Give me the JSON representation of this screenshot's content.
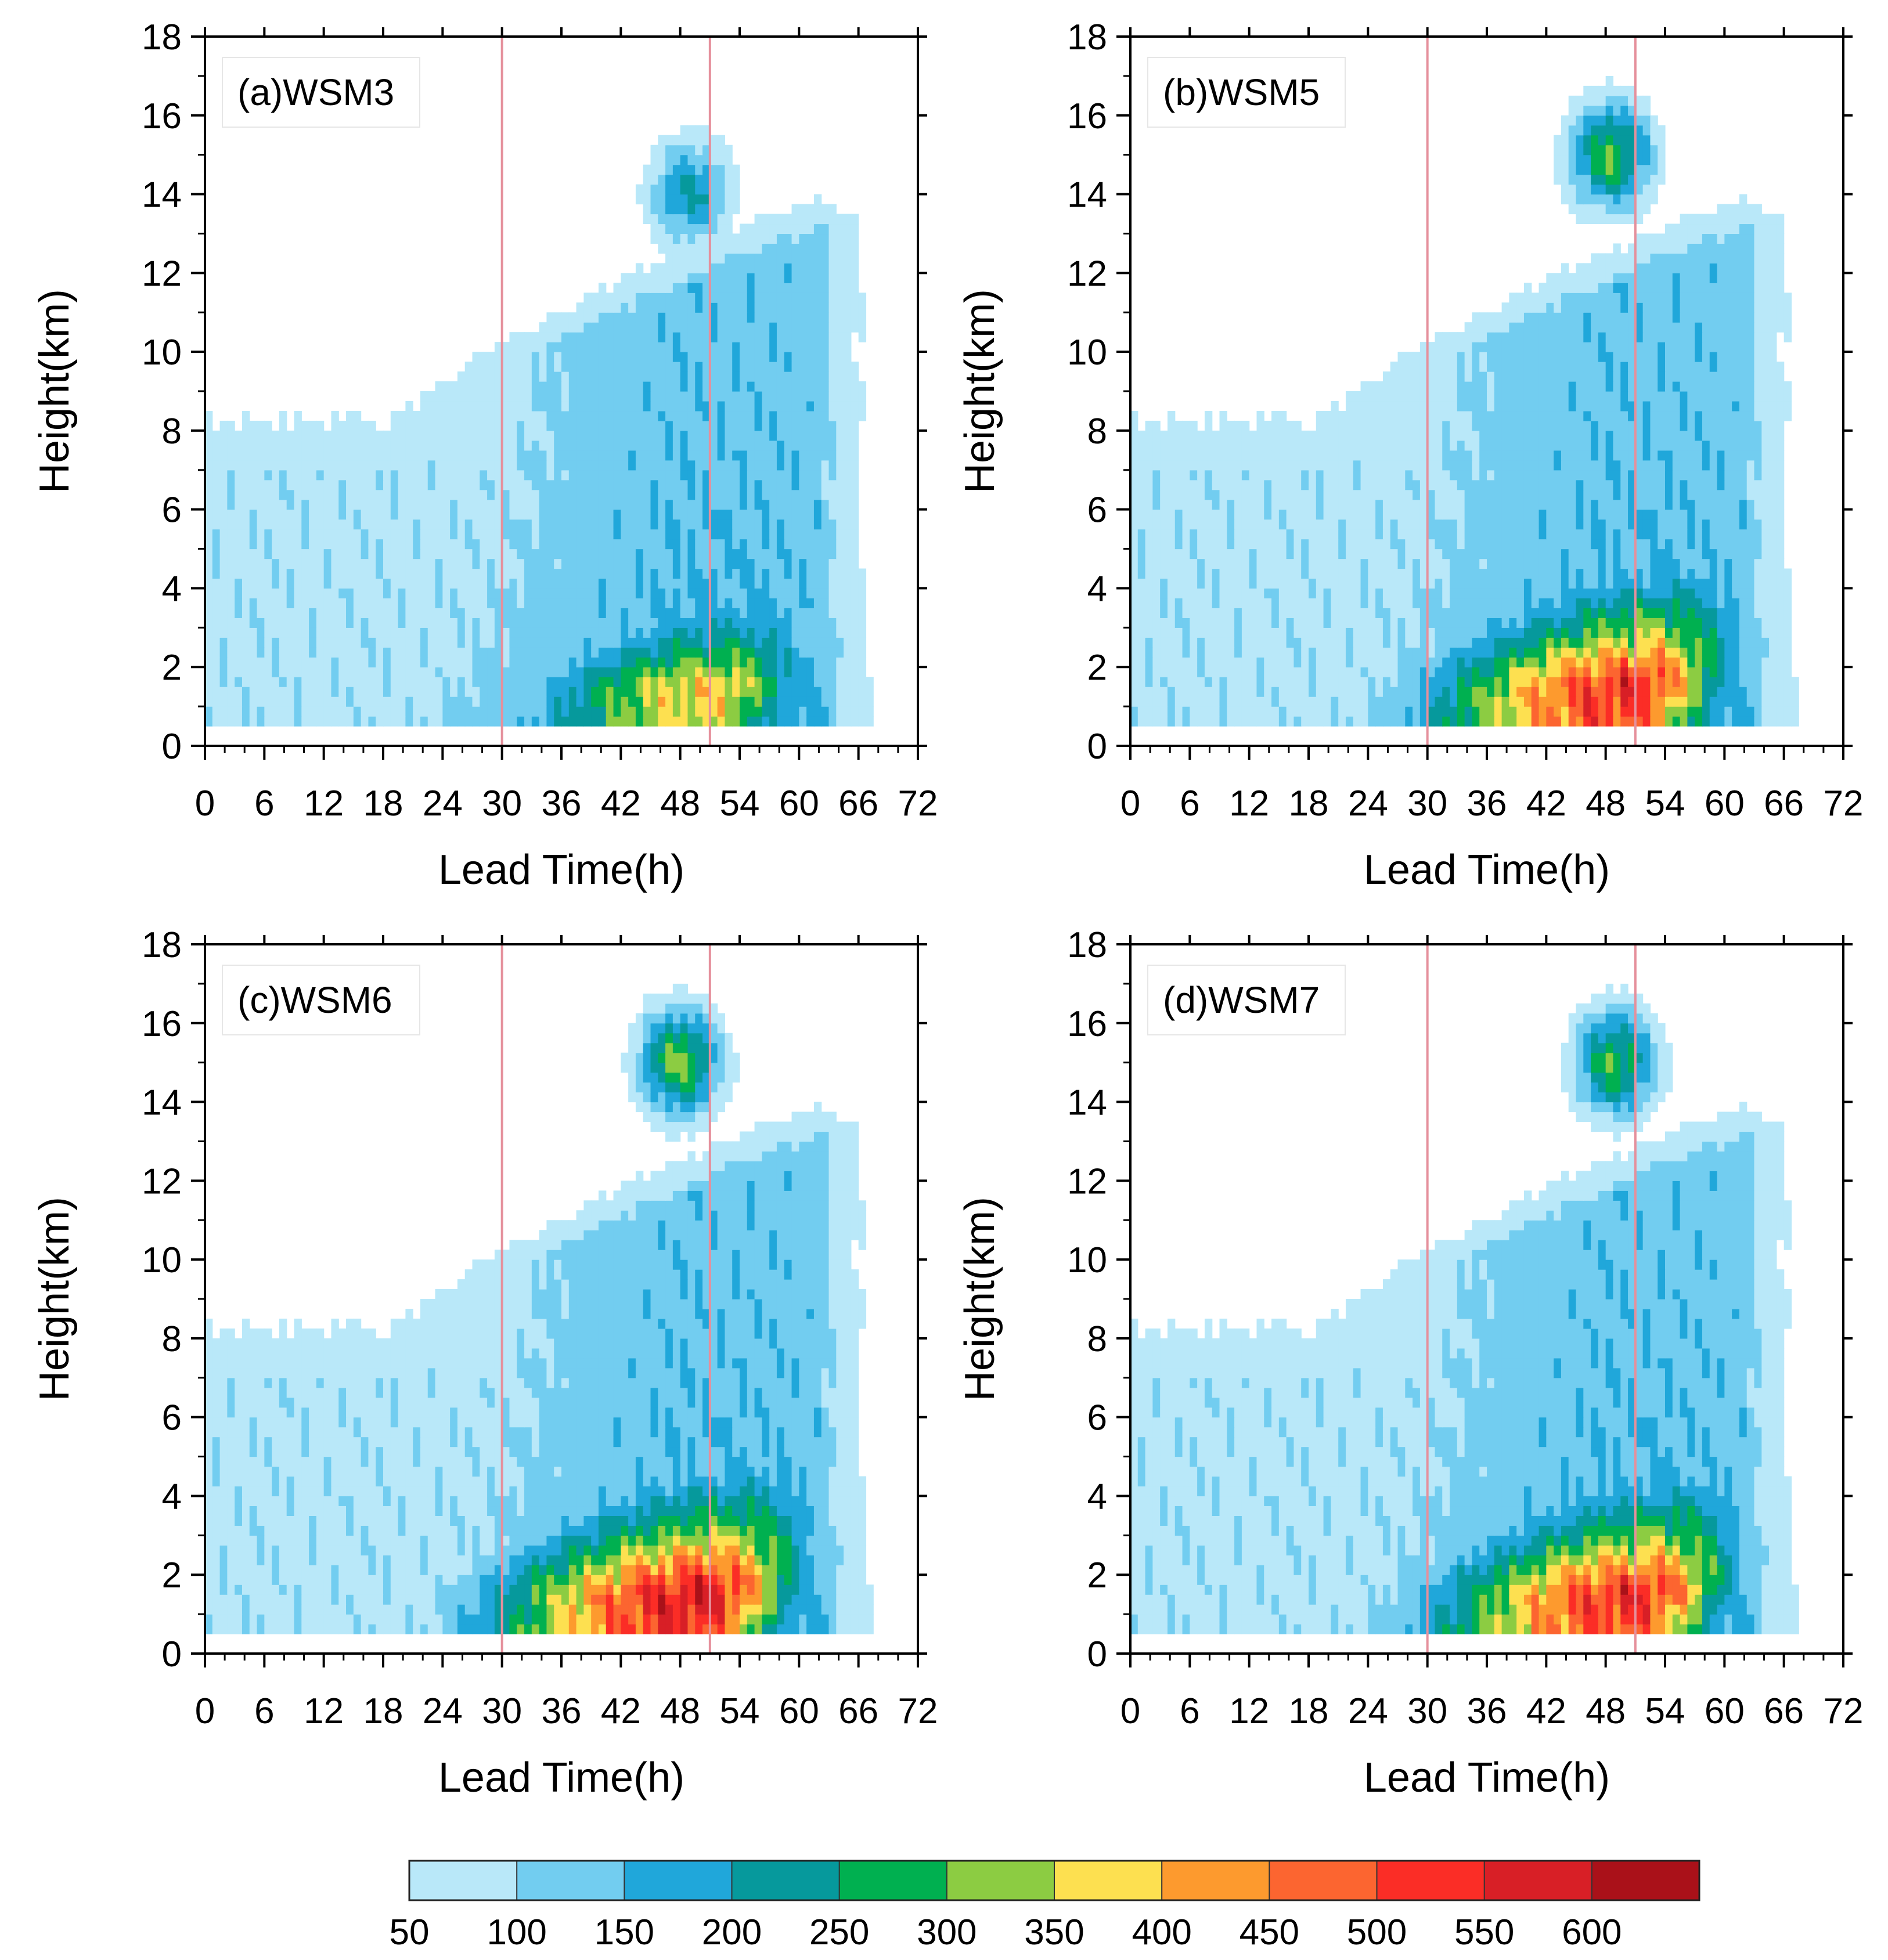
{
  "chart_data": [
    {
      "type": "heatmap",
      "panel_label": "(a)WSM3",
      "xlabel": "Lead Time(h)",
      "ylabel": "Height(km)",
      "xlim": [
        0,
        72
      ],
      "ylim": [
        0,
        18
      ],
      "xticks": [
        "0",
        "6",
        "12",
        "18",
        "24",
        "30",
        "36",
        "42",
        "48",
        "54",
        "60",
        "66",
        "72"
      ],
      "yticks": [
        "0",
        "2",
        "4",
        "6",
        "8",
        "10",
        "12",
        "14",
        "16",
        "18"
      ],
      "reference_lines_x": [
        30,
        51
      ],
      "peak": {
        "x": 50,
        "y": 1.5,
        "value": 420
      },
      "top_height_km": 15.5
    },
    {
      "type": "heatmap",
      "panel_label": "(b)WSM5",
      "xlabel": "Lead Time(h)",
      "ylabel": "Height(km)",
      "xlim": [
        0,
        72
      ],
      "ylim": [
        0,
        18
      ],
      "xticks": [
        "0",
        "6",
        "12",
        "18",
        "24",
        "30",
        "36",
        "42",
        "48",
        "54",
        "60",
        "66",
        "72"
      ],
      "yticks": [
        "0",
        "2",
        "4",
        "6",
        "8",
        "10",
        "12",
        "14",
        "16",
        "18"
      ],
      "reference_lines_x": [
        30,
        51
      ],
      "peak": {
        "x": 49.5,
        "y": 1.5,
        "value": 580
      },
      "top_height_km": 16.5
    },
    {
      "type": "heatmap",
      "panel_label": "(c)WSM6",
      "xlabel": "Lead Time(h)",
      "ylabel": "Height(km)",
      "xlim": [
        0,
        72
      ],
      "ylim": [
        0,
        18
      ],
      "xticks": [
        "0",
        "6",
        "12",
        "18",
        "24",
        "30",
        "36",
        "42",
        "48",
        "54",
        "60",
        "66",
        "72"
      ],
      "yticks": [
        "0",
        "2",
        "4",
        "6",
        "8",
        "10",
        "12",
        "14",
        "16",
        "18"
      ],
      "reference_lines_x": [
        30,
        51
      ],
      "peak": {
        "x": 49,
        "y": 1.5,
        "value": 620
      },
      "top_height_km": 16.5
    },
    {
      "type": "heatmap",
      "panel_label": "(d)WSM7",
      "xlabel": "Lead Time(h)",
      "ylabel": "Height(km)",
      "xlim": [
        0,
        72
      ],
      "ylim": [
        0,
        18
      ],
      "xticks": [
        "0",
        "6",
        "12",
        "18",
        "24",
        "30",
        "36",
        "42",
        "48",
        "54",
        "60",
        "66",
        "72"
      ],
      "yticks": [
        "0",
        "2",
        "4",
        "6",
        "8",
        "10",
        "12",
        "14",
        "16",
        "18"
      ],
      "reference_lines_x": [
        30,
        51
      ],
      "peak": {
        "x": 50,
        "y": 1.5,
        "value": 580
      },
      "top_height_km": 16.5
    }
  ],
  "colorbar": {
    "levels": [
      "50",
      "100",
      "150",
      "200",
      "250",
      "300",
      "350",
      "400",
      "450",
      "500",
      "550",
      "600"
    ],
    "colors": [
      "#b9e8f9",
      "#72cdf0",
      "#20a7da",
      "#06999c",
      "#00b050",
      "#8ccc42",
      "#fde050",
      "#fd9a2e",
      "#fc6530",
      "#fb2d26",
      "#d81f26",
      "#aa1119"
    ]
  },
  "reference_line_color": "#e5909c",
  "background_color": "#ffffff"
}
